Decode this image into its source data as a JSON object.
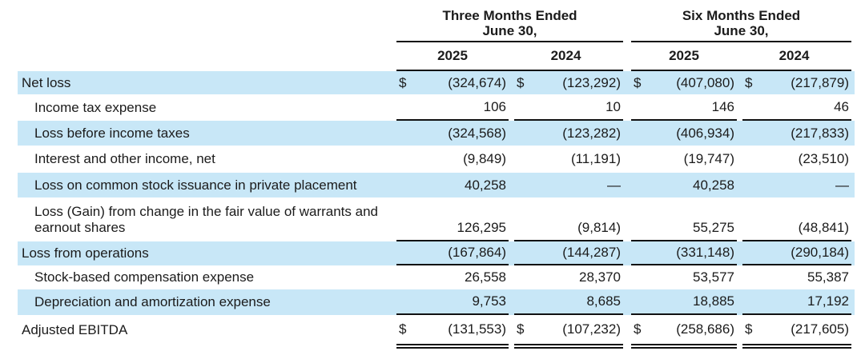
{
  "colors": {
    "row_highlight": "#c8e7f7",
    "text": "#1b1b1b",
    "rule": "#111111"
  },
  "table": {
    "currency_symbol": "$",
    "header": {
      "groups": [
        {
          "line1": "Three Months Ended",
          "line2": "June 30,"
        },
        {
          "line1": "Six Months Ended",
          "line2": "June 30,"
        }
      ],
      "years": [
        "2025",
        "2024",
        "2025",
        "2024"
      ]
    },
    "rows": [
      {
        "label": "Net loss",
        "indent": 0,
        "highlight": true,
        "dollar": true,
        "rule_below": false,
        "double_rule_below": false,
        "tall": false,
        "values": [
          "(324,674)",
          "(123,292)",
          "(407,080)",
          "(217,879)"
        ]
      },
      {
        "label": "Income tax expense",
        "indent": 1,
        "highlight": false,
        "dollar": false,
        "rule_below": true,
        "double_rule_below": false,
        "tall": false,
        "values": [
          "106",
          "10",
          "146",
          "46"
        ]
      },
      {
        "label": "Loss before income taxes",
        "indent": 1,
        "highlight": true,
        "dollar": false,
        "rule_below": false,
        "double_rule_below": false,
        "tall": false,
        "values": [
          "(324,568)",
          "(123,282)",
          "(406,934)",
          "(217,833)"
        ]
      },
      {
        "label": "Interest and other income, net",
        "indent": 1,
        "highlight": false,
        "dollar": false,
        "rule_below": false,
        "double_rule_below": false,
        "tall": false,
        "values": [
          "(9,849)",
          "(11,191)",
          "(19,747)",
          "(23,510)"
        ]
      },
      {
        "label": "Loss on common stock issuance in private placement",
        "indent": 1,
        "highlight": true,
        "dollar": false,
        "rule_below": false,
        "double_rule_below": false,
        "tall": false,
        "values": [
          "40,258",
          "—",
          "40,258",
          "—"
        ]
      },
      {
        "label": "Loss (Gain) from change in the fair value of warrants and earnout shares",
        "indent": 1,
        "highlight": false,
        "dollar": false,
        "rule_below": true,
        "double_rule_below": false,
        "tall": true,
        "values": [
          "126,295",
          "(9,814)",
          "55,275",
          "(48,841)"
        ]
      },
      {
        "label": "Loss from operations",
        "indent": 0,
        "highlight": true,
        "dollar": false,
        "rule_below": true,
        "double_rule_below": false,
        "tall": false,
        "values": [
          "(167,864)",
          "(144,287)",
          "(331,148)",
          "(290,184)"
        ]
      },
      {
        "label": "Stock-based compensation expense",
        "indent": 1,
        "highlight": false,
        "dollar": false,
        "rule_below": false,
        "double_rule_below": false,
        "tall": false,
        "values": [
          "26,558",
          "28,370",
          "53,577",
          "55,387"
        ]
      },
      {
        "label": "Depreciation and amortization expense",
        "indent": 1,
        "highlight": true,
        "dollar": false,
        "rule_below": true,
        "double_rule_below": false,
        "tall": false,
        "values": [
          "9,753",
          "8,685",
          "18,885",
          "17,192"
        ]
      },
      {
        "label": "Adjusted EBITDA",
        "indent": 0,
        "highlight": false,
        "dollar": true,
        "rule_below": false,
        "double_rule_below": true,
        "tall": false,
        "values": [
          "(131,553)",
          "(107,232)",
          "(258,686)",
          "(217,605)"
        ]
      }
    ]
  }
}
